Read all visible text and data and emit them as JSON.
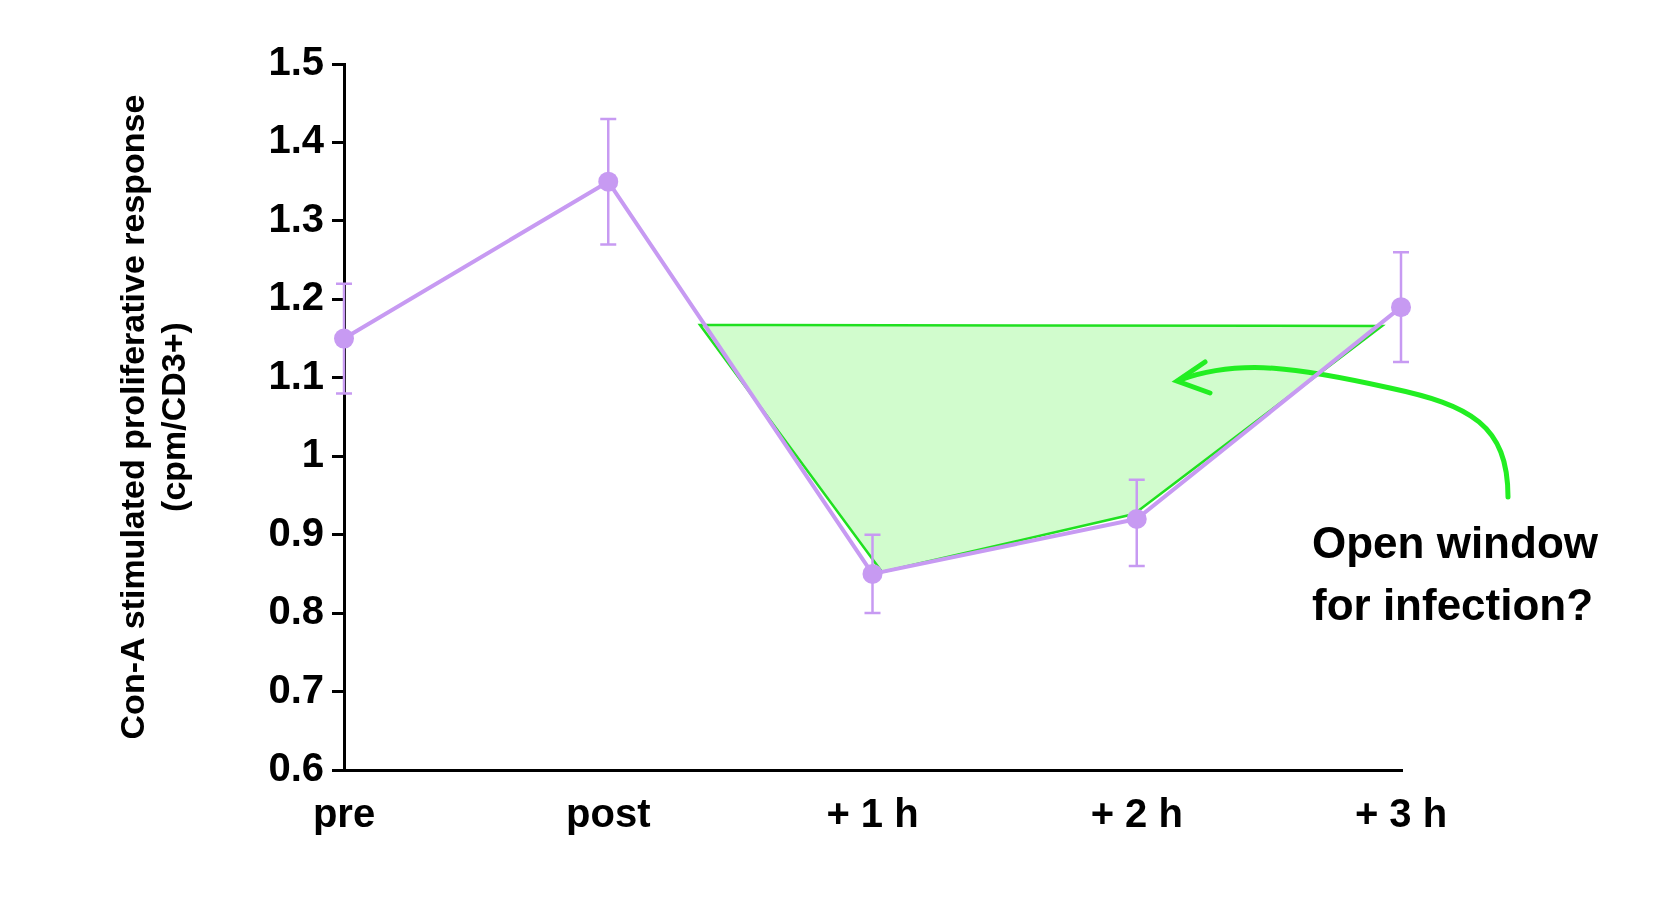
{
  "chart_data": {
    "type": "line",
    "ylabel": "Con-A stimulated proliferative response\n(cpm/CD3+)",
    "categories": [
      "pre",
      "post",
      "+ 1 h",
      "+ 2 h",
      "+ 3 h"
    ],
    "series": [
      {
        "color": "#c79af2",
        "values": [
          1.15,
          1.35,
          0.85,
          0.92,
          1.19
        ],
        "errors": [
          [
            1.08,
            1.22
          ],
          [
            1.27,
            1.43
          ],
          [
            0.8,
            0.9
          ],
          [
            0.86,
            0.97
          ],
          [
            1.12,
            1.26
          ]
        ]
      }
    ],
    "ylim": [
      0.6,
      1.5
    ],
    "yticks": [
      0.6,
      0.7,
      0.8,
      0.9,
      1,
      1.1,
      1.2,
      1.3,
      1.4,
      1.5
    ],
    "grid": false,
    "legend": false,
    "marker": "circle",
    "line_style": "solid",
    "annotations": [
      "Open window for infection?"
    ]
  }
}
